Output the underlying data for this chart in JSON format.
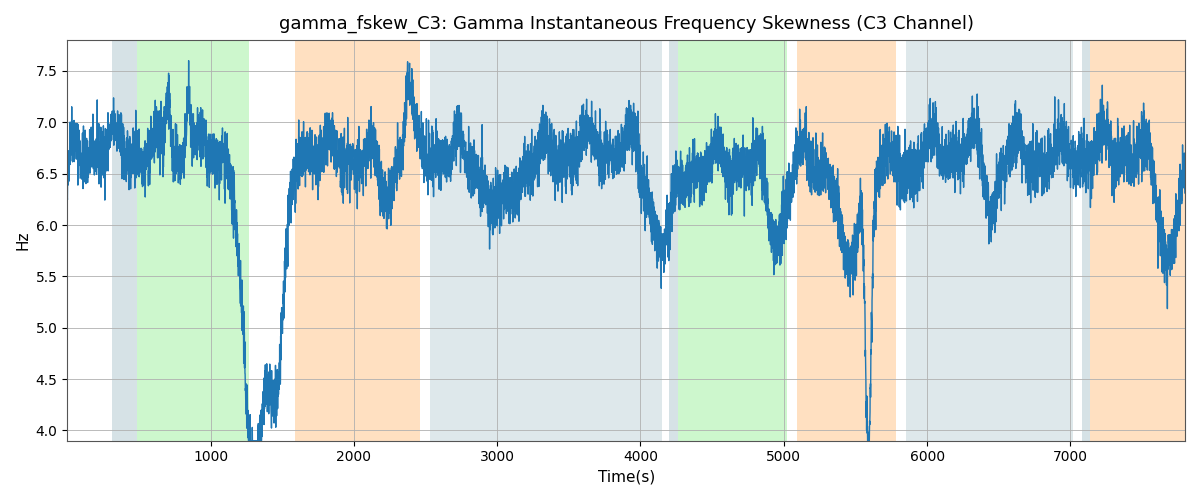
{
  "title": "gamma_fskew_C3: Gamma Instantaneous Frequency Skewness (C3 Channel)",
  "xlabel": "Time(s)",
  "ylabel": "Hz",
  "xlim": [
    0,
    7800
  ],
  "ylim": [
    3.9,
    7.8
  ],
  "line_color": "#1f77b4",
  "line_width": 1.0,
  "background_color": "#ffffff",
  "grid_color": "#b0b0b0",
  "title_fontsize": 13,
  "label_fontsize": 11,
  "seed": 42,
  "bands": [
    {
      "xmin": 310,
      "xmax": 490,
      "color": "#aec6cf",
      "alpha": 0.5
    },
    {
      "xmin": 490,
      "xmax": 1270,
      "color": "#90ee90",
      "alpha": 0.45
    },
    {
      "xmin": 1590,
      "xmax": 2460,
      "color": "#ffcc99",
      "alpha": 0.6
    },
    {
      "xmin": 2530,
      "xmax": 4150,
      "color": "#aec6cf",
      "alpha": 0.4
    },
    {
      "xmin": 4200,
      "xmax": 4260,
      "color": "#aec6cf",
      "alpha": 0.5
    },
    {
      "xmin": 4260,
      "xmax": 5020,
      "color": "#90ee90",
      "alpha": 0.45
    },
    {
      "xmin": 5090,
      "xmax": 5780,
      "color": "#ffcc99",
      "alpha": 0.6
    },
    {
      "xmin": 5850,
      "xmax": 7020,
      "color": "#aec6cf",
      "alpha": 0.4
    },
    {
      "xmin": 7080,
      "xmax": 7140,
      "color": "#aec6cf",
      "alpha": 0.5
    },
    {
      "xmin": 7140,
      "xmax": 7800,
      "color": "#ffcc99",
      "alpha": 0.6
    }
  ],
  "yticks": [
    4.0,
    4.5,
    5.0,
    5.5,
    6.0,
    6.5,
    7.0,
    7.5
  ],
  "xticks": [
    1000,
    2000,
    3000,
    4000,
    5000,
    6000,
    7000
  ]
}
